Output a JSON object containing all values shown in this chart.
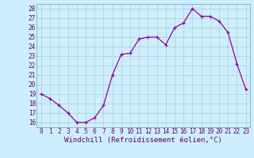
{
  "x": [
    0,
    1,
    2,
    3,
    4,
    5,
    6,
    7,
    8,
    9,
    10,
    11,
    12,
    13,
    14,
    15,
    16,
    17,
    18,
    19,
    20,
    21,
    22,
    23
  ],
  "y": [
    19.0,
    18.5,
    17.8,
    17.0,
    16.0,
    16.0,
    16.5,
    17.8,
    21.0,
    23.2,
    23.3,
    24.8,
    25.0,
    25.0,
    24.2,
    26.0,
    26.5,
    28.0,
    27.2,
    27.2,
    26.7,
    25.5,
    22.2,
    19.5
  ],
  "line_color": "#990099",
  "marker": "+",
  "marker_size": 3,
  "bg_color": "#cceeff",
  "grid_color": "#aacccc",
  "xlabel": "Windchill (Refroidissement éolien,°C)",
  "xlim": [
    -0.5,
    23.5
  ],
  "ylim": [
    15.5,
    28.5
  ],
  "yticks": [
    16,
    17,
    18,
    19,
    20,
    21,
    22,
    23,
    24,
    25,
    26,
    27,
    28
  ],
  "xticks": [
    0,
    1,
    2,
    3,
    4,
    5,
    6,
    7,
    8,
    9,
    10,
    11,
    12,
    13,
    14,
    15,
    16,
    17,
    18,
    19,
    20,
    21,
    22,
    23
  ],
  "tick_label_color": "#660066",
  "axis_label_color": "#660066",
  "label_fontsize": 6.5,
  "tick_fontsize": 5.5,
  "spine_color": "#8899aa"
}
